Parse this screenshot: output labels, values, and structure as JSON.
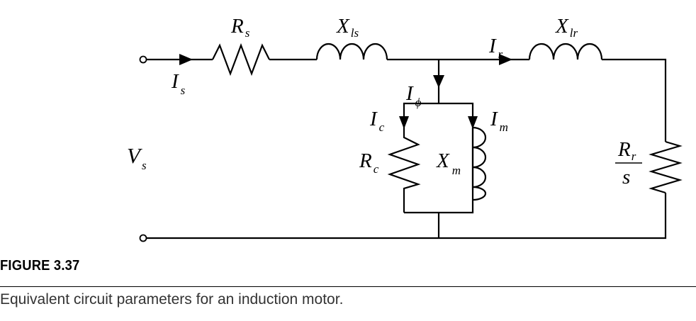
{
  "diagram": {
    "labels": {
      "Rs": {
        "main": "R",
        "sub": "s"
      },
      "Xls": {
        "main": "X",
        "sub": "ls"
      },
      "Ir": {
        "main": "I",
        "sub": "r"
      },
      "Xlr": {
        "main": "X",
        "sub": "lr"
      },
      "Is": {
        "main": "I",
        "sub": "s"
      },
      "Iphi": {
        "main": "I",
        "sub": "ϕ"
      },
      "Ic": {
        "main": "I",
        "sub": "c"
      },
      "Im": {
        "main": "I",
        "sub": "m"
      },
      "Vs": {
        "main": "V",
        "sub": "s"
      },
      "Rc": {
        "main": "R",
        "sub": "c"
      },
      "Xm": {
        "main": "X",
        "sub": "m"
      },
      "Rr_over_s": {
        "num_main": "R",
        "num_sub": "r",
        "den": "s"
      }
    }
  },
  "figure": {
    "label": "FIGURE 3.37",
    "caption": "Equivalent circuit parameters for an induction motor."
  }
}
